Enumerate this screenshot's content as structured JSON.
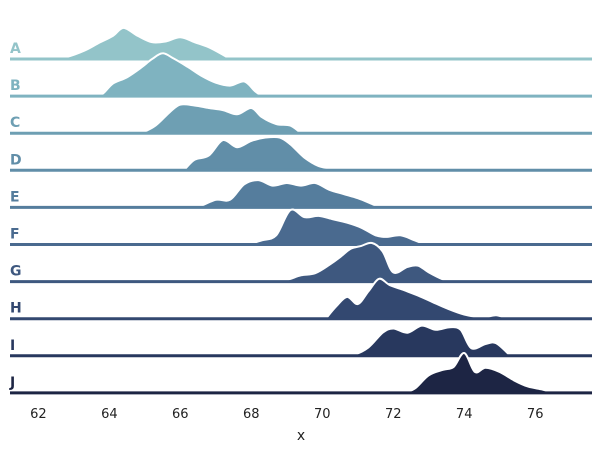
{
  "chart_data": {
    "type": "area",
    "subtype": "ridgeline",
    "xlabel": "x",
    "xlim": [
      61.2,
      77.6
    ],
    "xticks": [
      62,
      64,
      66,
      68,
      70,
      72,
      74,
      76
    ],
    "grid": false,
    "legend": "none",
    "series": [
      {
        "name": "A",
        "color": "#93c4c9",
        "x": [
          62.3,
          62.8,
          63.3,
          63.7,
          64.1,
          64.4,
          64.8,
          65.2,
          65.6,
          66.0,
          66.4,
          66.8,
          67.2,
          67.4
        ],
        "y": [
          0.0,
          0.05,
          0.2,
          0.38,
          0.55,
          0.74,
          0.55,
          0.4,
          0.42,
          0.52,
          0.4,
          0.28,
          0.1,
          0.0
        ]
      },
      {
        "name": "B",
        "color": "#7fb3c0",
        "x": [
          63.5,
          63.8,
          64.1,
          64.5,
          64.9,
          65.2,
          65.5,
          65.8,
          66.2,
          66.6,
          67.0,
          67.4,
          67.8,
          68.1,
          68.3
        ],
        "y": [
          0.0,
          0.05,
          0.3,
          0.45,
          0.68,
          0.88,
          1.02,
          0.9,
          0.7,
          0.48,
          0.32,
          0.25,
          0.35,
          0.12,
          0.0
        ]
      },
      {
        "name": "C",
        "color": "#6e9fb3",
        "x": [
          64.9,
          65.3,
          65.7,
          66.0,
          66.4,
          66.8,
          67.2,
          67.6,
          68.0,
          68.3,
          68.7,
          69.1,
          69.4
        ],
        "y": [
          0.0,
          0.18,
          0.5,
          0.68,
          0.66,
          0.6,
          0.55,
          0.45,
          0.6,
          0.38,
          0.22,
          0.18,
          0.0
        ]
      },
      {
        "name": "D",
        "color": "#618ea8",
        "x": [
          66.1,
          66.4,
          66.8,
          67.2,
          67.6,
          68.0,
          68.4,
          68.8,
          69.1,
          69.5,
          69.9,
          70.3,
          70.5
        ],
        "y": [
          0.0,
          0.25,
          0.35,
          0.72,
          0.55,
          0.7,
          0.78,
          0.78,
          0.62,
          0.3,
          0.1,
          0.03,
          0.0
        ]
      },
      {
        "name": "E",
        "color": "#557d9d",
        "x": [
          66.5,
          67.0,
          67.4,
          67.8,
          68.2,
          68.6,
          69.0,
          69.4,
          69.8,
          70.2,
          70.6,
          71.0,
          71.4,
          71.6
        ],
        "y": [
          0.0,
          0.18,
          0.18,
          0.55,
          0.65,
          0.52,
          0.58,
          0.52,
          0.58,
          0.42,
          0.32,
          0.22,
          0.08,
          0.0
        ]
      },
      {
        "name": "F",
        "color": "#4a6a8f",
        "x": [
          67.9,
          68.3,
          68.7,
          69.1,
          69.5,
          69.9,
          70.3,
          70.7,
          71.1,
          71.5,
          71.8,
          72.2,
          72.6,
          72.9
        ],
        "y": [
          0.0,
          0.1,
          0.22,
          0.82,
          0.65,
          0.68,
          0.6,
          0.52,
          0.4,
          0.22,
          0.18,
          0.22,
          0.1,
          0.0
        ]
      },
      {
        "name": "G",
        "color": "#3e587f",
        "x": [
          68.6,
          69.0,
          69.4,
          69.8,
          70.2,
          70.5,
          70.8,
          71.1,
          71.4,
          71.7,
          72.0,
          72.4,
          72.7,
          73.0,
          73.4,
          73.6
        ],
        "y": [
          0.0,
          0.04,
          0.15,
          0.2,
          0.4,
          0.58,
          0.78,
          0.85,
          0.92,
          0.72,
          0.22,
          0.35,
          0.38,
          0.22,
          0.05,
          0.0
        ]
      },
      {
        "name": "H",
        "color": "#334870",
        "x": [
          70.1,
          70.4,
          70.7,
          71.0,
          71.3,
          71.6,
          71.9,
          72.3,
          72.7,
          73.1,
          73.5,
          74.0,
          74.5,
          74.9,
          75.2
        ],
        "y": [
          0.0,
          0.3,
          0.52,
          0.35,
          0.65,
          0.95,
          0.8,
          0.68,
          0.55,
          0.4,
          0.25,
          0.1,
          0.03,
          0.08,
          0.0
        ]
      },
      {
        "name": "I",
        "color": "#28385e",
        "x": [
          70.4,
          70.9,
          71.3,
          71.7,
          72.0,
          72.4,
          72.8,
          73.2,
          73.6,
          73.9,
          74.2,
          74.6,
          74.9,
          75.3
        ],
        "y": [
          0.0,
          0.03,
          0.2,
          0.55,
          0.65,
          0.55,
          0.72,
          0.62,
          0.68,
          0.62,
          0.18,
          0.28,
          0.3,
          0.0
        ]
      },
      {
        "name": "J",
        "color": "#1d2544",
        "x": [
          71.3,
          71.8,
          72.3,
          72.6,
          73.0,
          73.4,
          73.7,
          74.0,
          74.3,
          74.6,
          75.0,
          75.4,
          75.8,
          76.2,
          76.5
        ],
        "y": [
          0.0,
          0.02,
          0.03,
          0.1,
          0.42,
          0.55,
          0.62,
          0.95,
          0.5,
          0.6,
          0.5,
          0.3,
          0.15,
          0.08,
          0.0
        ]
      }
    ]
  }
}
